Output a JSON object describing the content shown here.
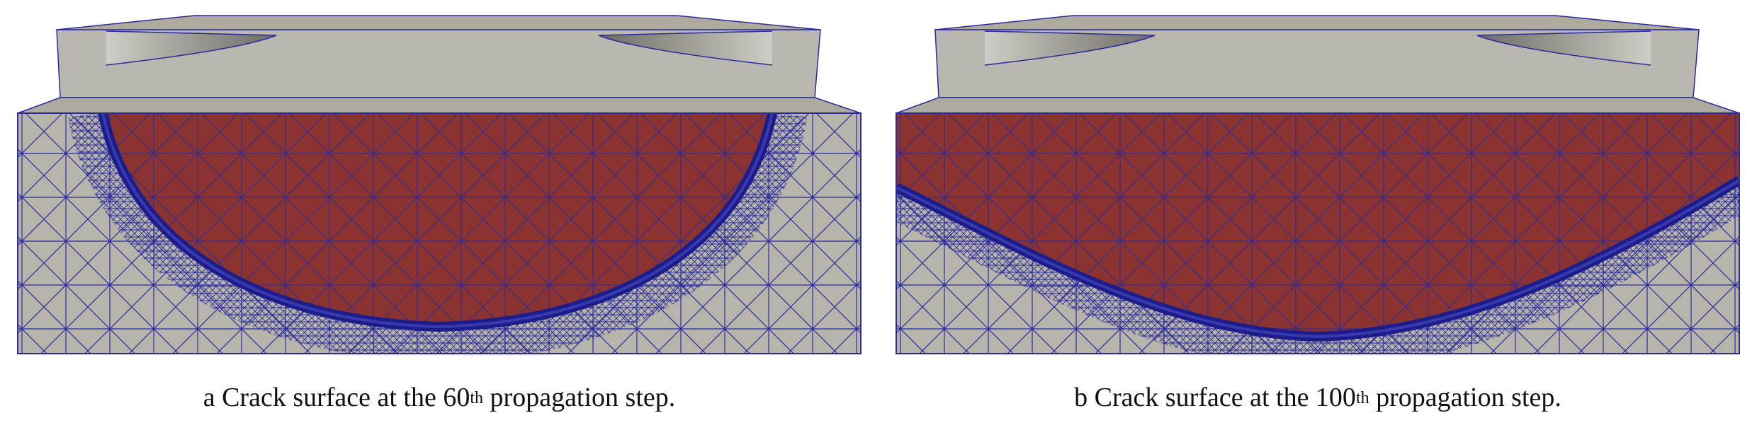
{
  "colors": {
    "background": "#ffffff",
    "solid_face": "#b7b4ab",
    "solid_top": "#aeaa9e",
    "crack_surface": "#8a3330",
    "mesh_lines": "#2a2a9c",
    "crack_front": "#1c1c8a"
  },
  "panels": [
    {
      "id": "a",
      "prefix": "a Crack surface at the 60",
      "sup": "th",
      "suffix": " propagation step."
    },
    {
      "id": "b",
      "prefix": "b Crack surface at the 100",
      "sup": "th",
      "suffix": " propagation step."
    }
  ]
}
